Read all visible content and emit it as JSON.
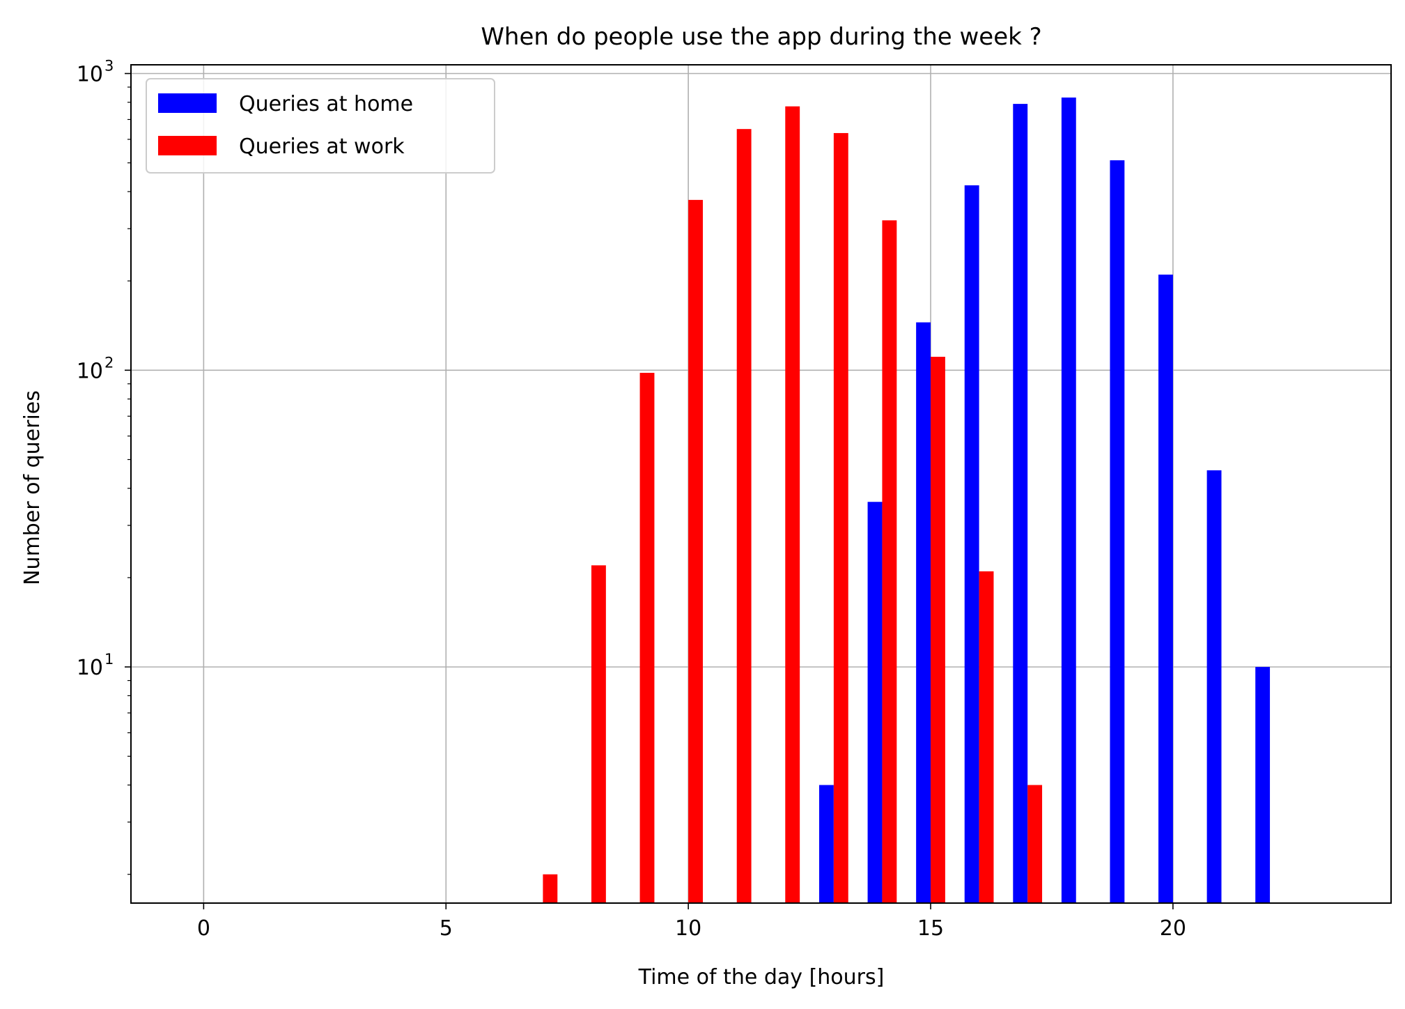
{
  "chart_data": {
    "type": "bar",
    "title": "When do people use the app during the week ?",
    "xlabel": "Time of the day [hours]",
    "ylabel": "Number of queries",
    "x_ticks": [
      "0",
      "5",
      "10",
      "15",
      "20"
    ],
    "x_tick_values": [
      0,
      5,
      10,
      15,
      20
    ],
    "y_scale": "log",
    "y_ticks": [
      {
        "value": 10,
        "base": "10",
        "exp": "1"
      },
      {
        "value": 100,
        "base": "10",
        "exp": "2"
      },
      {
        "value": 1000,
        "base": "10",
        "exp": "3"
      }
    ],
    "xlim": [
      -1.5,
      24.5
    ],
    "ylim": [
      1.6,
      1070
    ],
    "grid": true,
    "legend_position": "top-left",
    "series": [
      {
        "name": "Queries at home",
        "color": "#0000ff",
        "offset": "left",
        "points": [
          {
            "x": 13,
            "y": 4
          },
          {
            "x": 14,
            "y": 36
          },
          {
            "x": 15,
            "y": 145
          },
          {
            "x": 16,
            "y": 420
          },
          {
            "x": 17,
            "y": 790
          },
          {
            "x": 18,
            "y": 830
          },
          {
            "x": 19,
            "y": 510
          },
          {
            "x": 20,
            "y": 210
          },
          {
            "x": 21,
            "y": 46
          },
          {
            "x": 22,
            "y": 10
          }
        ]
      },
      {
        "name": "Queries at work",
        "color": "#ff0000",
        "offset": "right",
        "points": [
          {
            "x": 7,
            "y": 2
          },
          {
            "x": 8,
            "y": 22
          },
          {
            "x": 9,
            "y": 98
          },
          {
            "x": 10,
            "y": 375
          },
          {
            "x": 11,
            "y": 650
          },
          {
            "x": 12,
            "y": 775
          },
          {
            "x": 13,
            "y": 630
          },
          {
            "x": 14,
            "y": 320
          },
          {
            "x": 15,
            "y": 111
          },
          {
            "x": 16,
            "y": 21
          },
          {
            "x": 17,
            "y": 4
          }
        ]
      }
    ]
  }
}
